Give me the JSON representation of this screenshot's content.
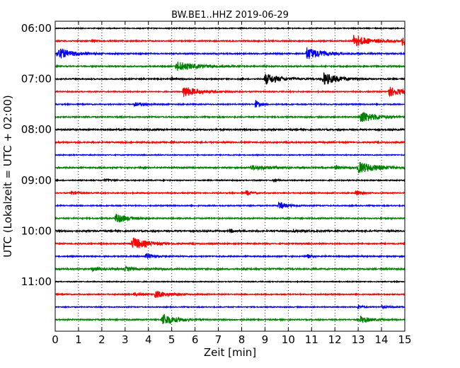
{
  "chart_data": {
    "type": "line",
    "title": "BW.BE1..HHZ 2019-06-29",
    "xlabel": "Zeit  [min]",
    "ylabel": "UTC (Lokalzeit = UTC + 02:00)",
    "xlim": [
      0,
      15
    ],
    "x_ticks": [
      "0",
      "1",
      "2",
      "3",
      "4",
      "5",
      "6",
      "7",
      "8",
      "9",
      "10",
      "11",
      "12",
      "13",
      "14",
      "15"
    ],
    "y_ticks": [
      "06:00",
      "07:00",
      "08:00",
      "09:00",
      "10:00",
      "11:00"
    ],
    "y_tick_rows": [
      0,
      4,
      8,
      12,
      16,
      20
    ],
    "grid": true,
    "grid_style": "dotted vertical lines at each minute",
    "trace_interval_minutes": 15,
    "colors": [
      "#000000",
      "#ff0000",
      "#0000ff",
      "#008000"
    ],
    "traces": [
      {
        "start": "06:00",
        "color": "#000000",
        "noise": 0.6,
        "events": []
      },
      {
        "start": "06:15",
        "color": "#ff0000",
        "noise": 0.8,
        "events": [
          [
            1.6,
            2.0,
            0.15
          ],
          [
            12.8,
            9.0,
            0.6
          ],
          [
            14.9,
            7.0,
            0.5
          ]
        ]
      },
      {
        "start": "06:30",
        "color": "#0000ff",
        "noise": 0.8,
        "events": [
          [
            0.1,
            8.0,
            0.6
          ],
          [
            10.8,
            9.0,
            0.6
          ]
        ]
      },
      {
        "start": "06:45",
        "color": "#008000",
        "noise": 0.8,
        "events": [
          [
            5.2,
            7.0,
            0.8
          ]
        ]
      },
      {
        "start": "07:00",
        "color": "#000000",
        "noise": 0.8,
        "events": [
          [
            5.0,
            2.0,
            0.1
          ],
          [
            9.0,
            8.0,
            0.6
          ],
          [
            11.5,
            9.0,
            0.6
          ]
        ]
      },
      {
        "start": "07:15",
        "color": "#ff0000",
        "noise": 0.7,
        "events": [
          [
            5.5,
            8.0,
            0.6
          ],
          [
            14.3,
            7.0,
            0.6
          ]
        ]
      },
      {
        "start": "07:30",
        "color": "#0000ff",
        "noise": 0.7,
        "events": [
          [
            3.4,
            2.5,
            0.4
          ],
          [
            8.6,
            6.0,
            0.15
          ]
        ]
      },
      {
        "start": "07:45",
        "color": "#008000",
        "noise": 0.8,
        "events": [
          [
            13.1,
            9.0,
            0.6
          ]
        ]
      },
      {
        "start": "08:00",
        "color": "#000000",
        "noise": 1.0,
        "events": []
      },
      {
        "start": "08:15",
        "color": "#ff0000",
        "noise": 0.9,
        "events": []
      },
      {
        "start": "08:30",
        "color": "#0000ff",
        "noise": 0.6,
        "events": []
      },
      {
        "start": "08:45",
        "color": "#008000",
        "noise": 0.9,
        "events": [
          [
            8.4,
            3.0,
            0.8
          ],
          [
            13.0,
            8.0,
            0.8
          ],
          [
            12.0,
            2.5,
            0.3
          ]
        ]
      },
      {
        "start": "09:00",
        "color": "#000000",
        "noise": 0.7,
        "events": [
          [
            2.1,
            2.0,
            0.2
          ],
          [
            9.4,
            2.0,
            0.1
          ]
        ]
      },
      {
        "start": "09:15",
        "color": "#ff0000",
        "noise": 0.7,
        "events": [
          [
            0.7,
            3.0,
            0.2
          ],
          [
            8.2,
            4.0,
            0.2
          ],
          [
            12.9,
            4.0,
            0.2
          ]
        ]
      },
      {
        "start": "09:30",
        "color": "#0000ff",
        "noise": 0.7,
        "events": [
          [
            9.6,
            6.0,
            0.3
          ]
        ]
      },
      {
        "start": "09:45",
        "color": "#008000",
        "noise": 0.8,
        "events": [
          [
            2.6,
            8.0,
            0.4
          ]
        ]
      },
      {
        "start": "10:00",
        "color": "#000000",
        "noise": 1.0,
        "events": [
          [
            7.5,
            2.0,
            0.3
          ],
          [
            10.2,
            2.0,
            0.3
          ]
        ]
      },
      {
        "start": "10:15",
        "color": "#ff0000",
        "noise": 0.8,
        "events": [
          [
            3.3,
            9.0,
            0.6
          ]
        ]
      },
      {
        "start": "10:30",
        "color": "#0000ff",
        "noise": 0.8,
        "events": [
          [
            3.9,
            4.0,
            0.3
          ],
          [
            10.8,
            3.0,
            0.2
          ]
        ]
      },
      {
        "start": "10:45",
        "color": "#008000",
        "noise": 1.0,
        "events": [
          [
            1.6,
            2.5,
            0.5
          ],
          [
            3.0,
            2.5,
            0.4
          ]
        ]
      },
      {
        "start": "11:00",
        "color": "#000000",
        "noise": 0.6,
        "events": []
      },
      {
        "start": "11:15",
        "color": "#ff0000",
        "noise": 0.7,
        "events": [
          [
            4.3,
            5.0,
            0.5
          ],
          [
            3.4,
            2.0,
            0.4
          ]
        ]
      },
      {
        "start": "11:30",
        "color": "#0000ff",
        "noise": 0.6,
        "events": [
          [
            13.0,
            3.5,
            0.15
          ],
          [
            14.0,
            2.0,
            0.4
          ]
        ]
      },
      {
        "start": "11:45",
        "color": "#008000",
        "noise": 0.8,
        "events": [
          [
            4.6,
            9.0,
            0.5
          ],
          [
            13.1,
            5.0,
            0.4
          ]
        ]
      }
    ]
  }
}
